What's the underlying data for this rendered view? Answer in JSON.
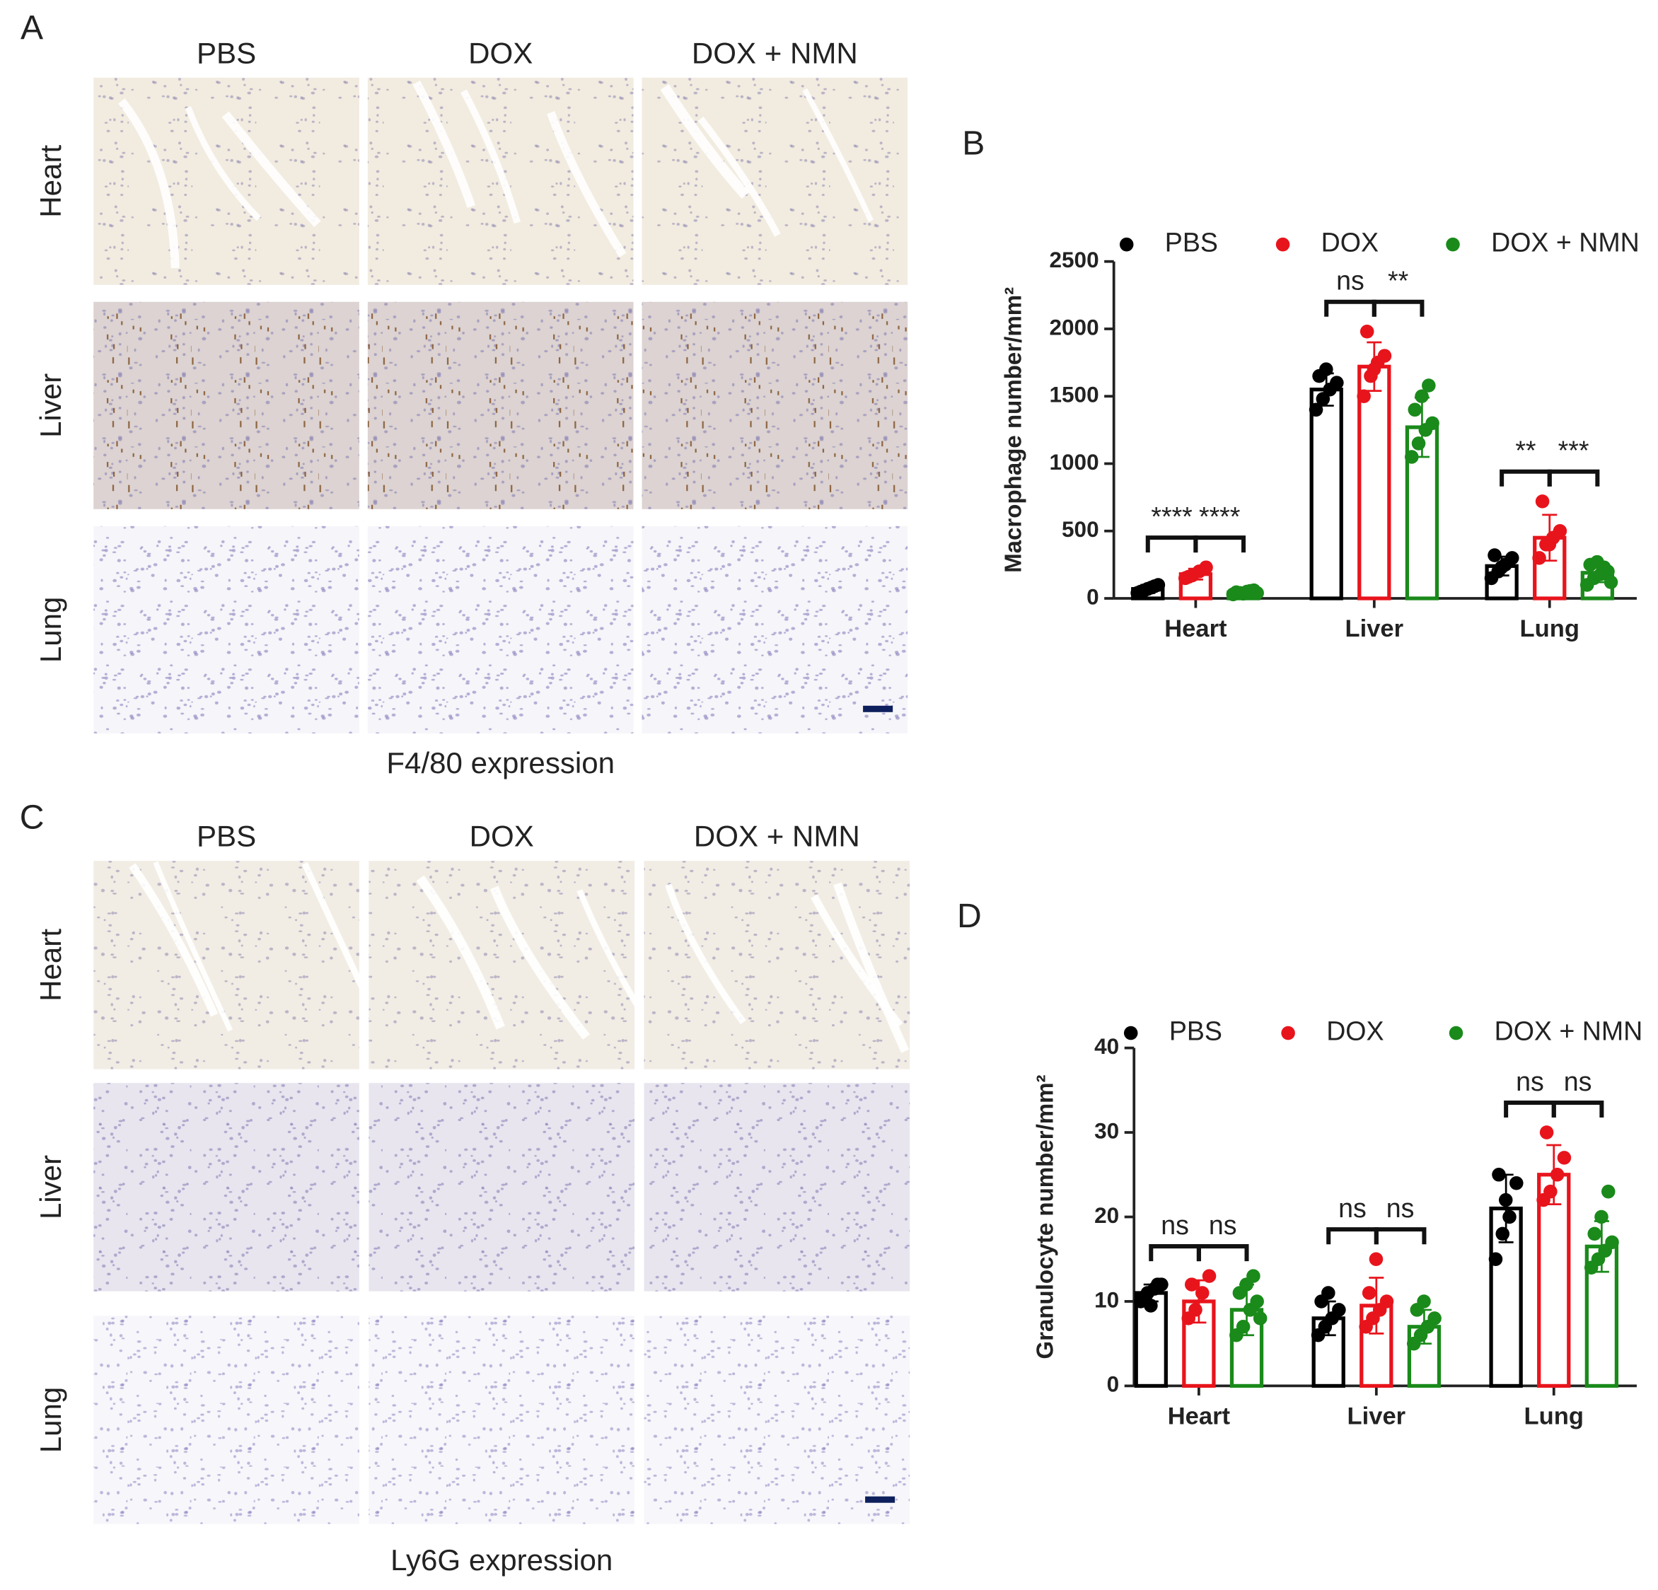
{
  "image_panels": [
    {
      "letter": "A",
      "columns": [
        "PBS",
        "DOX",
        "DOX + NMN"
      ],
      "rows": [
        "Heart",
        "Liver",
        "Lung"
      ],
      "caption": "F4/80 expression"
    },
    {
      "letter": "C",
      "columns": [
        "PBS",
        "DOX",
        "DOX + NMN"
      ],
      "rows": [
        "Heart",
        "Liver",
        "Lung"
      ],
      "caption": "Ly6G expression"
    }
  ],
  "chart_data": [
    {
      "type": "bar",
      "letter": "B",
      "ylabel": "Macrophage number/mm²",
      "categories": [
        "Heart",
        "Liver",
        "Lung"
      ],
      "ylim": [
        0,
        2500
      ],
      "yticks": [
        0,
        500,
        1000,
        1500,
        2000,
        2500
      ],
      "legend": "top",
      "series": [
        {
          "name": "PBS",
          "color": "#000000",
          "values": [
            70,
            1550,
            240
          ],
          "errors": [
            30,
            120,
            70
          ],
          "points": [
            [
              40,
              60,
              80,
              100,
              50,
              70,
              90
            ],
            [
              1400,
              1480,
              1550,
              1600,
              1650,
              1700
            ],
            [
              150,
              200,
              250,
              300,
              320,
              230
            ]
          ]
        },
        {
          "name": "DOX",
          "color": "#e8141c",
          "values": [
            180,
            1720,
            450
          ],
          "errors": [
            40,
            180,
            170
          ],
          "points": [
            [
              150,
              170,
              200,
              230,
              160
            ],
            [
              1500,
              1650,
              1750,
              1800,
              1980,
              1700
            ],
            [
              300,
              400,
              450,
              500,
              720,
              400
            ]
          ]
        },
        {
          "name": "DOX + NMN",
          "color": "#1a8a1a",
          "values": [
            45,
            1270,
            190
          ],
          "errors": [
            15,
            220,
            70
          ],
          "points": [
            [
              30,
              40,
              50,
              60,
              45,
              35,
              55,
              40
            ],
            [
              1050,
              1150,
              1250,
              1300,
              1400,
              1500,
              1580
            ],
            [
              100,
              150,
              180,
              200,
              250,
              270,
              230,
              120
            ]
          ]
        }
      ],
      "annotations": [
        {
          "category": "Heart",
          "groups": [
            "PBS",
            "DOX"
          ],
          "text": "****"
        },
        {
          "category": "Heart",
          "groups": [
            "DOX",
            "DOX + NMN"
          ],
          "text": "****"
        },
        {
          "category": "Liver",
          "groups": [
            "PBS",
            "DOX"
          ],
          "text": "ns"
        },
        {
          "category": "Liver",
          "groups": [
            "DOX",
            "DOX + NMN"
          ],
          "text": "**"
        },
        {
          "category": "Lung",
          "groups": [
            "PBS",
            "DOX"
          ],
          "text": "**"
        },
        {
          "category": "Lung",
          "groups": [
            "DOX",
            "DOX + NMN"
          ],
          "text": "***"
        }
      ]
    },
    {
      "type": "bar",
      "letter": "D",
      "ylabel": "Granulocyte number/mm²",
      "categories": [
        "Heart",
        "Liver",
        "Lung"
      ],
      "ylim": [
        0,
        40
      ],
      "yticks": [
        0,
        10,
        20,
        30,
        40
      ],
      "legend": "top",
      "series": [
        {
          "name": "PBS",
          "color": "#000000",
          "values": [
            11,
            8,
            21
          ],
          "errors": [
            1,
            2,
            4
          ],
          "points": [
            [
              10,
              11,
              11.5,
              12,
              10.5,
              9.5,
              12
            ],
            [
              6,
              7,
              8,
              9,
              10,
              11
            ],
            [
              15,
              18,
              20,
              24,
              25,
              22
            ]
          ]
        },
        {
          "name": "DOX",
          "color": "#e8141c",
          "values": [
            10,
            9.5,
            25
          ],
          "errors": [
            2.5,
            3.3,
            3.5
          ],
          "points": [
            [
              8,
              9,
              11,
              13,
              12
            ],
            [
              7,
              8,
              9,
              10,
              11,
              15
            ],
            [
              22,
              23,
              25,
              27,
              30
            ]
          ]
        },
        {
          "name": "DOX + NMN",
          "color": "#1a8a1a",
          "values": [
            9,
            7,
            16.5
          ],
          "errors": [
            3,
            2,
            3
          ],
          "points": [
            [
              6,
              7,
              9,
              10,
              11,
              12,
              13,
              8
            ],
            [
              5,
              6,
              7,
              8,
              9,
              10
            ],
            [
              14,
              15,
              16,
              17,
              18,
              20,
              23
            ]
          ]
        }
      ],
      "annotations": [
        {
          "category": "Heart",
          "groups": [
            "PBS",
            "DOX"
          ],
          "text": "ns"
        },
        {
          "category": "Heart",
          "groups": [
            "DOX",
            "DOX + NMN"
          ],
          "text": "ns"
        },
        {
          "category": "Liver",
          "groups": [
            "PBS",
            "DOX"
          ],
          "text": "ns"
        },
        {
          "category": "Liver",
          "groups": [
            "DOX",
            "DOX + NMN"
          ],
          "text": "ns"
        },
        {
          "category": "Lung",
          "groups": [
            "PBS",
            "DOX"
          ],
          "text": "ns"
        },
        {
          "category": "Lung",
          "groups": [
            "DOX",
            "DOX + NMN"
          ],
          "text": "ns"
        }
      ]
    }
  ]
}
